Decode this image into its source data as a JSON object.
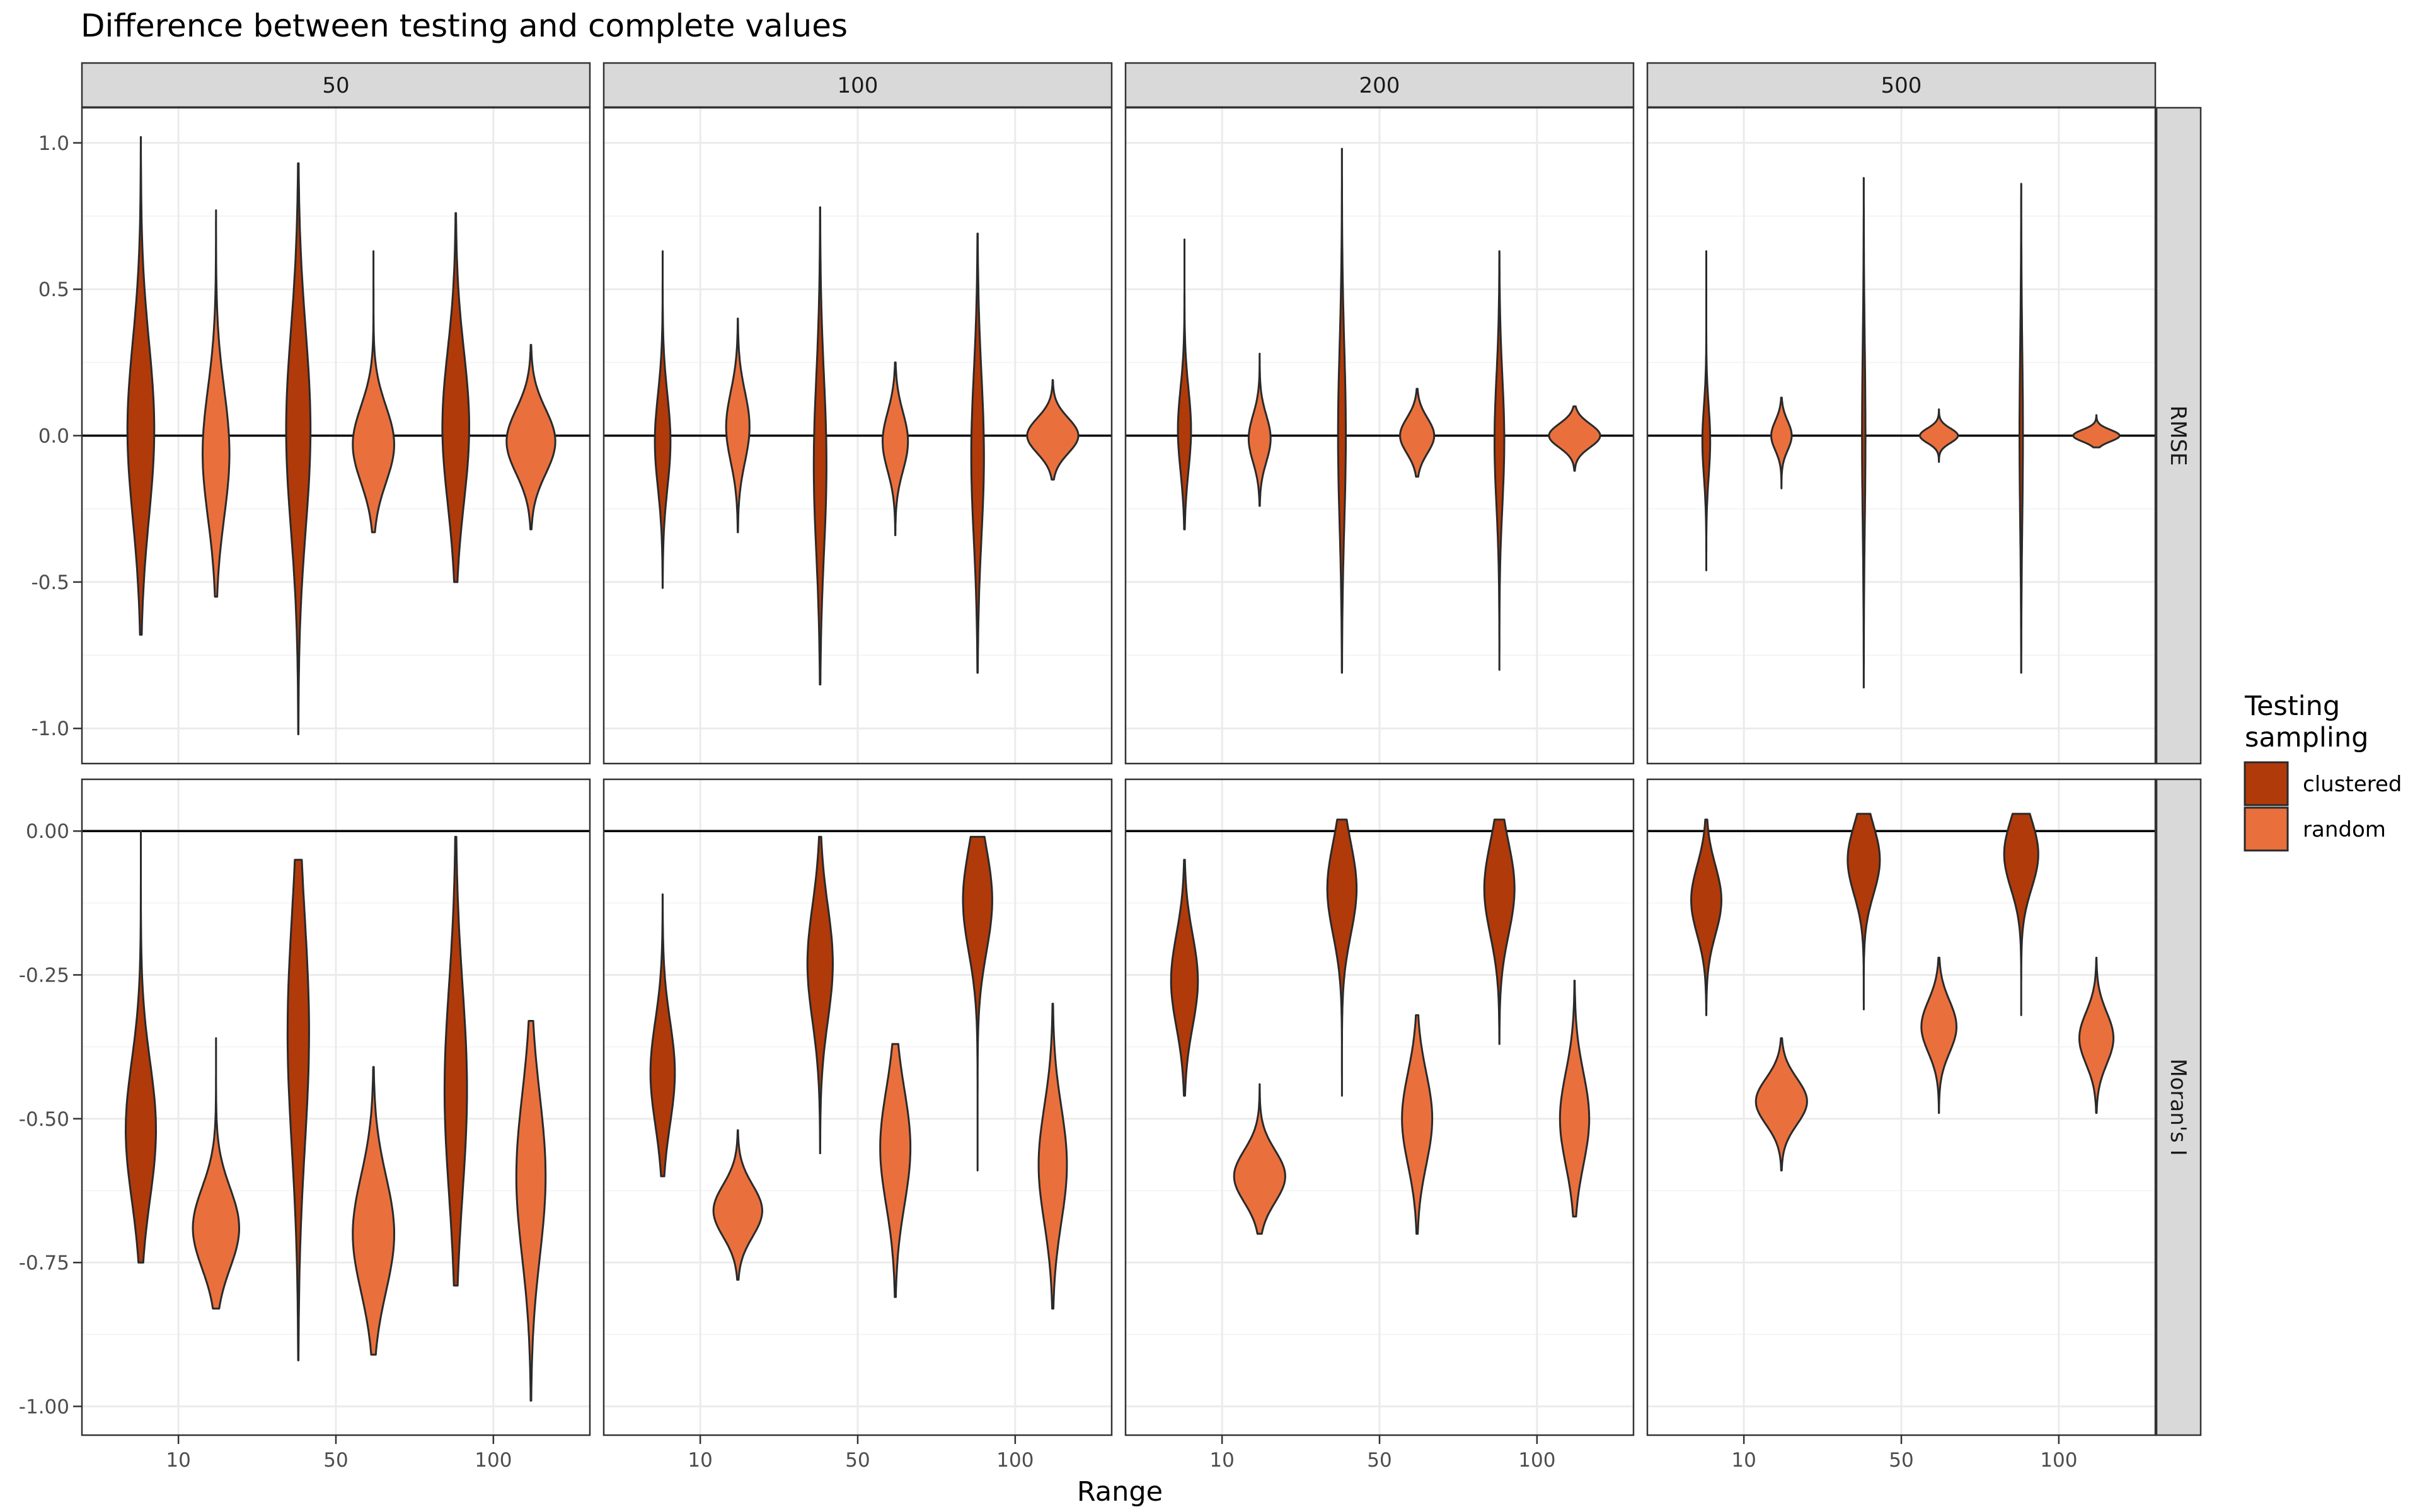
{
  "chart_data": {
    "type": "violin",
    "title": "Difference between testing and complete values",
    "xlabel": "Range",
    "ylabel": "",
    "facet_columns": [
      "50",
      "100",
      "200",
      "500"
    ],
    "facet_rows": [
      {
        "name": "RMSE",
        "ylim": [
          -1.12,
          1.12
        ],
        "ticks": [
          1.0,
          0.5,
          0.0,
          -0.5,
          -1.0
        ],
        "tick_labels": [
          "1.0",
          "0.5",
          "0.0",
          "-0.5",
          "-1.0"
        ],
        "hline": 0
      },
      {
        "name": "Moran's I",
        "ylim": [
          -1.05,
          0.09
        ],
        "ticks": [
          0.0,
          -0.25,
          -0.5,
          -0.75,
          -1.0
        ],
        "tick_labels": [
          "0.00",
          "-0.25",
          "-0.50",
          "-0.75",
          "-1.00"
        ],
        "hline": 0
      }
    ],
    "x_categories": [
      "10",
      "50",
      "100"
    ],
    "legend": {
      "title_lines": [
        "Testing",
        "sampling"
      ],
      "position": "right",
      "entries": [
        {
          "label": "clustered",
          "color": "#b13a0a"
        },
        {
          "label": "random",
          "color": "#e9703d"
        }
      ]
    },
    "colors": {
      "clustered": "#b13a0a",
      "random": "#e9703d",
      "outline": "#2a2a2a",
      "strip_fill": "#d9d9d9",
      "grid": "#ebebeb"
    },
    "violins": [
      {
        "row": 0,
        "col": 0,
        "cat": 0,
        "group": "clustered",
        "min": -0.68,
        "max": 1.02,
        "width": 0.55,
        "mode": 0.02,
        "spread": 0.3
      },
      {
        "row": 0,
        "col": 0,
        "cat": 0,
        "group": "random",
        "min": -0.55,
        "max": 0.77,
        "width": 0.55,
        "mode": -0.06,
        "spread": 0.22
      },
      {
        "row": 0,
        "col": 0,
        "cat": 1,
        "group": "clustered",
        "min": -1.02,
        "max": 0.93,
        "width": 0.5,
        "mode": 0.02,
        "spread": 0.34
      },
      {
        "row": 0,
        "col": 0,
        "cat": 1,
        "group": "random",
        "min": -0.33,
        "max": 0.63,
        "width": 0.85,
        "mode": -0.03,
        "spread": 0.13
      },
      {
        "row": 0,
        "col": 0,
        "cat": 2,
        "group": "clustered",
        "min": -0.5,
        "max": 0.76,
        "width": 0.55,
        "mode": 0.03,
        "spread": 0.26
      },
      {
        "row": 0,
        "col": 0,
        "cat": 2,
        "group": "random",
        "min": -0.32,
        "max": 0.31,
        "width": 1.0,
        "mode": -0.02,
        "spread": 0.11
      },
      {
        "row": 0,
        "col": 1,
        "cat": 0,
        "group": "clustered",
        "min": -0.52,
        "max": 0.63,
        "width": 0.32,
        "mode": -0.02,
        "spread": 0.16
      },
      {
        "row": 0,
        "col": 1,
        "cat": 0,
        "group": "random",
        "min": -0.33,
        "max": 0.4,
        "width": 0.48,
        "mode": 0.03,
        "spread": 0.12
      },
      {
        "row": 0,
        "col": 1,
        "cat": 1,
        "group": "clustered",
        "min": -0.85,
        "max": 0.78,
        "width": 0.26,
        "mode": -0.1,
        "spread": 0.3
      },
      {
        "row": 0,
        "col": 1,
        "cat": 1,
        "group": "random",
        "min": -0.34,
        "max": 0.25,
        "width": 0.52,
        "mode": -0.02,
        "spread": 0.1
      },
      {
        "row": 0,
        "col": 1,
        "cat": 2,
        "group": "clustered",
        "min": -0.81,
        "max": 0.69,
        "width": 0.26,
        "mode": -0.07,
        "spread": 0.28
      },
      {
        "row": 0,
        "col": 1,
        "cat": 2,
        "group": "random",
        "min": -0.15,
        "max": 0.19,
        "width": 1.05,
        "mode": 0.0,
        "spread": 0.06
      },
      {
        "row": 0,
        "col": 2,
        "cat": 0,
        "group": "clustered",
        "min": -0.32,
        "max": 0.67,
        "width": 0.27,
        "mode": 0.02,
        "spread": 0.14
      },
      {
        "row": 0,
        "col": 2,
        "cat": 0,
        "group": "random",
        "min": -0.24,
        "max": 0.28,
        "width": 0.45,
        "mode": -0.01,
        "spread": 0.08
      },
      {
        "row": 0,
        "col": 2,
        "cat": 1,
        "group": "clustered",
        "min": -0.81,
        "max": 0.98,
        "width": 0.16,
        "mode": 0.0,
        "spread": 0.3
      },
      {
        "row": 0,
        "col": 2,
        "cat": 1,
        "group": "random",
        "min": -0.14,
        "max": 0.16,
        "width": 0.7,
        "mode": 0.0,
        "spread": 0.06
      },
      {
        "row": 0,
        "col": 2,
        "cat": 2,
        "group": "clustered",
        "min": -0.8,
        "max": 0.63,
        "width": 0.2,
        "mode": -0.02,
        "spread": 0.22
      },
      {
        "row": 0,
        "col": 2,
        "cat": 2,
        "group": "random",
        "min": -0.12,
        "max": 0.1,
        "width": 1.05,
        "mode": 0.0,
        "spread": 0.04
      },
      {
        "row": 0,
        "col": 3,
        "cat": 0,
        "group": "clustered",
        "min": -0.46,
        "max": 0.63,
        "width": 0.16,
        "mode": -0.02,
        "spread": 0.12
      },
      {
        "row": 0,
        "col": 3,
        "cat": 0,
        "group": "random",
        "min": -0.18,
        "max": 0.13,
        "width": 0.42,
        "mode": 0.0,
        "spread": 0.05
      },
      {
        "row": 0,
        "col": 3,
        "cat": 1,
        "group": "clustered",
        "min": -0.86,
        "max": 0.88,
        "width": 0.07,
        "mode": 0.0,
        "spread": 0.3
      },
      {
        "row": 0,
        "col": 3,
        "cat": 1,
        "group": "random",
        "min": -0.09,
        "max": 0.09,
        "width": 0.78,
        "mode": 0.0,
        "spread": 0.025
      },
      {
        "row": 0,
        "col": 3,
        "cat": 2,
        "group": "clustered",
        "min": -0.81,
        "max": 0.86,
        "width": 0.07,
        "mode": 0.0,
        "spread": 0.3
      },
      {
        "row": 0,
        "col": 3,
        "cat": 2,
        "group": "random",
        "min": -0.04,
        "max": 0.07,
        "width": 0.95,
        "mode": 0.0,
        "spread": 0.02
      },
      {
        "row": 1,
        "col": 0,
        "cat": 0,
        "group": "clustered",
        "min": -0.75,
        "max": 0.0,
        "width": 0.62,
        "mode": -0.52,
        "spread": 0.12
      },
      {
        "row": 1,
        "col": 0,
        "cat": 0,
        "group": "random",
        "min": -0.83,
        "max": -0.36,
        "width": 0.95,
        "mode": -0.69,
        "spread": 0.07
      },
      {
        "row": 1,
        "col": 0,
        "cat": 1,
        "group": "clustered",
        "min": -0.92,
        "max": -0.05,
        "width": 0.44,
        "mode": -0.35,
        "spread": 0.2
      },
      {
        "row": 1,
        "col": 0,
        "cat": 1,
        "group": "random",
        "min": -0.91,
        "max": -0.41,
        "width": 0.85,
        "mode": -0.7,
        "spread": 0.1
      },
      {
        "row": 1,
        "col": 0,
        "cat": 2,
        "group": "clustered",
        "min": -0.79,
        "max": -0.01,
        "width": 0.46,
        "mode": -0.45,
        "spread": 0.18
      },
      {
        "row": 1,
        "col": 0,
        "cat": 2,
        "group": "random",
        "min": -0.99,
        "max": -0.33,
        "width": 0.6,
        "mode": -0.6,
        "spread": 0.14
      },
      {
        "row": 1,
        "col": 1,
        "cat": 0,
        "group": "clustered",
        "min": -0.6,
        "max": -0.11,
        "width": 0.5,
        "mode": -0.42,
        "spread": 0.09
      },
      {
        "row": 1,
        "col": 1,
        "cat": 0,
        "group": "random",
        "min": -0.78,
        "max": -0.52,
        "width": 1.0,
        "mode": -0.66,
        "spread": 0.045
      },
      {
        "row": 1,
        "col": 1,
        "cat": 1,
        "group": "clustered",
        "min": -0.56,
        "max": -0.01,
        "width": 0.52,
        "mode": -0.23,
        "spread": 0.1
      },
      {
        "row": 1,
        "col": 1,
        "cat": 2,
        "group": "clustered",
        "min": -0.59,
        "max": -0.01,
        "width": 0.6,
        "mode": -0.12,
        "spread": 0.09
      },
      {
        "row": 1,
        "col": 1,
        "cat": 1,
        "group": "random",
        "min": -0.81,
        "max": -0.37,
        "width": 0.62,
        "mode": -0.55,
        "spread": 0.1
      },
      {
        "row": 1,
        "col": 1,
        "cat": 2,
        "group": "random",
        "min": -0.83,
        "max": -0.3,
        "width": 0.58,
        "mode": -0.58,
        "spread": 0.1
      },
      {
        "row": 1,
        "col": 2,
        "cat": 0,
        "group": "clustered",
        "min": -0.46,
        "max": -0.05,
        "width": 0.55,
        "mode": -0.26,
        "spread": 0.08
      },
      {
        "row": 1,
        "col": 2,
        "cat": 0,
        "group": "random",
        "min": -0.7,
        "max": -0.44,
        "width": 1.05,
        "mode": -0.6,
        "spread": 0.045
      },
      {
        "row": 1,
        "col": 2,
        "cat": 1,
        "group": "clustered",
        "min": -0.46,
        "max": 0.02,
        "width": 0.6,
        "mode": -0.1,
        "spread": 0.08
      },
      {
        "row": 1,
        "col": 2,
        "cat": 1,
        "group": "random",
        "min": -0.7,
        "max": -0.32,
        "width": 0.62,
        "mode": -0.5,
        "spread": 0.08
      },
      {
        "row": 1,
        "col": 2,
        "cat": 2,
        "group": "clustered",
        "min": -0.37,
        "max": 0.02,
        "width": 0.62,
        "mode": -0.1,
        "spread": 0.08
      },
      {
        "row": 1,
        "col": 2,
        "cat": 2,
        "group": "random",
        "min": -0.67,
        "max": -0.26,
        "width": 0.6,
        "mode": -0.5,
        "spread": 0.08
      },
      {
        "row": 1,
        "col": 3,
        "cat": 0,
        "group": "clustered",
        "min": -0.32,
        "max": 0.02,
        "width": 0.62,
        "mode": -0.12,
        "spread": 0.06
      },
      {
        "row": 1,
        "col": 3,
        "cat": 0,
        "group": "random",
        "min": -0.59,
        "max": -0.36,
        "width": 1.05,
        "mode": -0.47,
        "spread": 0.04
      },
      {
        "row": 1,
        "col": 3,
        "cat": 1,
        "group": "clustered",
        "min": -0.31,
        "max": 0.03,
        "width": 0.66,
        "mode": -0.05,
        "spread": 0.06
      },
      {
        "row": 1,
        "col": 3,
        "cat": 1,
        "group": "random",
        "min": -0.49,
        "max": -0.22,
        "width": 0.72,
        "mode": -0.34,
        "spread": 0.045
      },
      {
        "row": 1,
        "col": 3,
        "cat": 2,
        "group": "clustered",
        "min": -0.32,
        "max": 0.03,
        "width": 0.7,
        "mode": -0.04,
        "spread": 0.06
      },
      {
        "row": 1,
        "col": 3,
        "cat": 2,
        "group": "random",
        "min": -0.49,
        "max": -0.22,
        "width": 0.7,
        "mode": -0.36,
        "spread": 0.045
      }
    ]
  }
}
